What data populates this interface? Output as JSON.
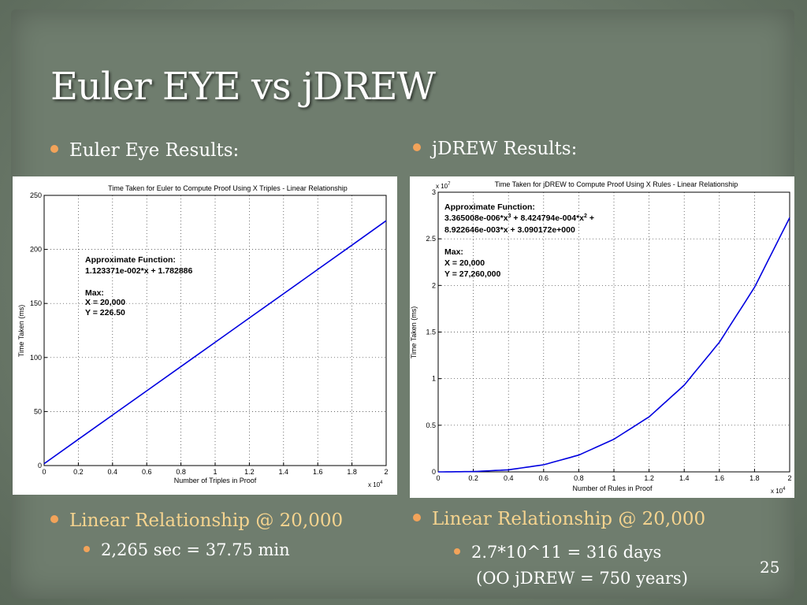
{
  "slide": {
    "title": "Euler EYE vs jDREW",
    "left_heading": "Euler Eye Results:",
    "right_heading": "jDREW Results:",
    "left_point": "Linear Relationship @ 20,000",
    "left_subpoint": "2,265 sec = 37.75 min",
    "right_point": "Linear Relationship @ 20,000",
    "right_subpoint_line1": "2.7*10^11 = 316 days",
    "right_subpoint_line2": "(OO jDREW = 750 years)",
    "page_number": "25",
    "colors": {
      "bullet": "#f2a35a",
      "accent_text": "#f6d48f",
      "curve": "#0000e0"
    }
  },
  "chart_data": [
    {
      "type": "line",
      "title": "Time Taken for Euler to Compute Proof Using X Triples - Linear Relationship",
      "xlabel": "Number of Triples in Proof",
      "ylabel": "Time Taken (ms)",
      "x_multiplier_label": "x 10",
      "x_multiplier_exp": "4",
      "xlim": [
        0,
        2
      ],
      "ylim": [
        0,
        250
      ],
      "xticks": [
        0,
        0.2,
        0.4,
        0.6,
        0.8,
        1,
        1.2,
        1.4,
        1.6,
        1.8,
        2
      ],
      "xtick_labels": [
        "0",
        "0.2",
        "0.4",
        "0.6",
        "0.8",
        "1",
        "1.2",
        "1.4",
        "1.6",
        "1.8",
        "2"
      ],
      "yticks": [
        0,
        50,
        100,
        150,
        200,
        250
      ],
      "ytick_labels": [
        "0",
        "50",
        "100",
        "150",
        "200",
        "250"
      ],
      "grid": true,
      "series": [
        {
          "x": [
            0,
            0.2,
            0.4,
            0.6,
            0.8,
            1.0,
            1.2,
            1.4,
            1.6,
            1.8,
            2.0
          ],
          "y": [
            1.78,
            24.25,
            46.71,
            69.17,
            91.63,
            114.1,
            136.6,
            159.0,
            181.5,
            203.9,
            226.5
          ]
        }
      ],
      "annotation": {
        "heading": "Approximate Function:",
        "formula": "1.123371e-002*x + 1.782886",
        "max_heading": "Max:",
        "max_x": "X = 20,000",
        "max_y": "Y = 226.50"
      }
    },
    {
      "type": "line",
      "title": "Time Taken for jDREW to Compute Proof Using X Rules - Linear Relationship",
      "xlabel": "Number of Rules in Proof",
      "ylabel": "Time Taken (ms)",
      "x_multiplier_label": "x 10",
      "x_multiplier_exp": "4",
      "y_multiplier_label": "x 10",
      "y_multiplier_exp": "7",
      "xlim": [
        0,
        2
      ],
      "ylim": [
        0,
        3
      ],
      "xticks": [
        0,
        0.2,
        0.4,
        0.6,
        0.8,
        1,
        1.2,
        1.4,
        1.6,
        1.8,
        2
      ],
      "xtick_labels": [
        "0",
        "0.2",
        "0.4",
        "0.6",
        "0.8",
        "1",
        "1.2",
        "1.4",
        "1.6",
        "1.8",
        "2"
      ],
      "yticks": [
        0,
        0.5,
        1,
        1.5,
        2,
        2.5,
        3
      ],
      "ytick_labels": [
        "0",
        "0.5",
        "1",
        "1.5",
        "2",
        "2.5",
        "3"
      ],
      "grid": true,
      "series": [
        {
          "x": [
            0,
            0.2,
            0.4,
            0.6,
            0.8,
            1.0,
            1.2,
            1.4,
            1.6,
            1.8,
            2.0
          ],
          "y": [
            0,
            0.003,
            0.022,
            0.076,
            0.18,
            0.35,
            0.59,
            0.93,
            1.39,
            1.98,
            2.726
          ]
        }
      ],
      "annotation": {
        "heading": "Approximate Function:",
        "formula_l1_a": "3.365008e-006*x",
        "formula_l1_a_exp": "3",
        "formula_l1_b": " + 8.424794e-004*x",
        "formula_l1_b_exp": "2",
        "formula_l1_c": " +",
        "formula_l2": "8.922646e-003*x + 3.090172e+000",
        "max_heading": "Max:",
        "max_x": "X = 20,000",
        "max_y": "Y = 27,260,000"
      }
    }
  ]
}
